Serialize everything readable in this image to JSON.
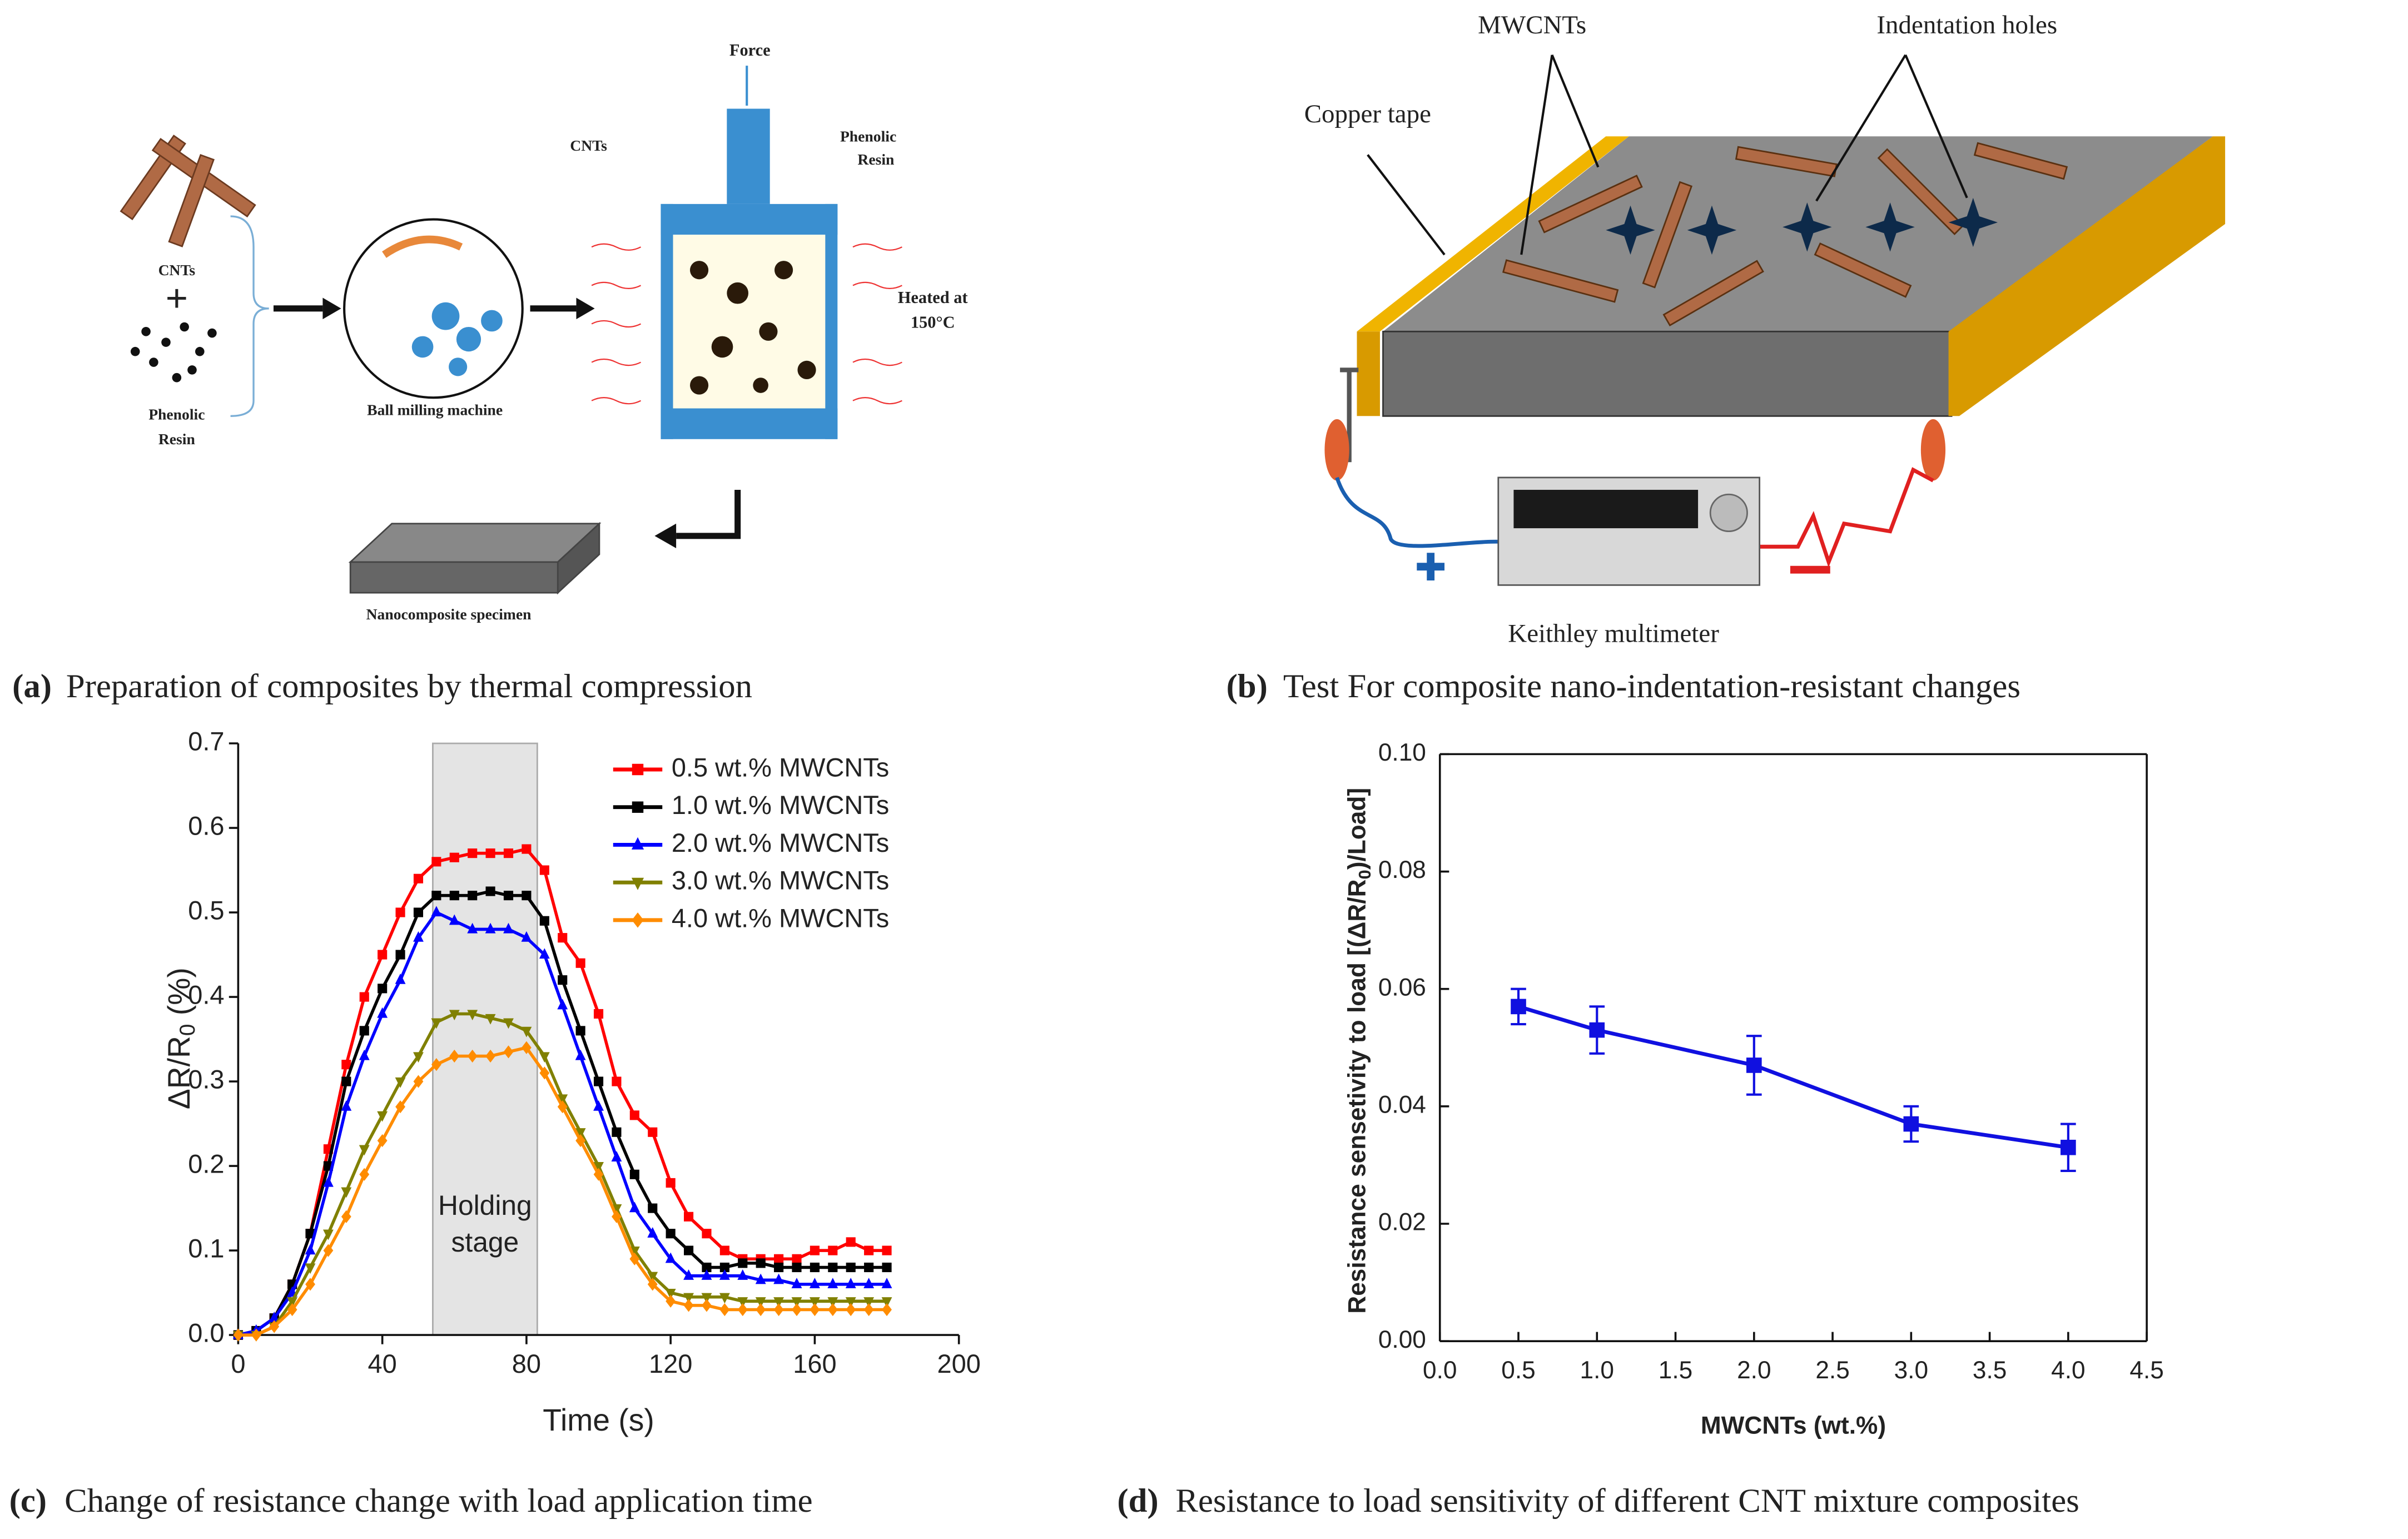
{
  "diagram_a": {
    "force": "Force",
    "cnts_top": "CNTs",
    "resin_top": [
      "Phenolic",
      "Resin"
    ],
    "heated": [
      "Heated at",
      "150°C"
    ],
    "cnts_left": "CNTs",
    "plus": "+",
    "resin_left": [
      "Phenolic",
      "Resin"
    ],
    "ball_mill": "Ball milling machine",
    "specimen": "Nanocomposite specimen"
  },
  "diagram_b": {
    "mwcnts": "MWCNTs",
    "holes": "Indentation holes",
    "copper": "Copper tape",
    "meter": "Keithley multimeter"
  },
  "captions": [
    {
      "label": "(a)",
      "text": "Preparation of composites by thermal compression"
    },
    {
      "label": "(b)",
      "text": "Test For composite nano-indentation-resistant changes"
    },
    {
      "label": "(c)",
      "text": "Change of resistance change with load application time"
    },
    {
      "label": "(d)",
      "text": "Resistance to load sensitivity of different CNT mixture composites"
    }
  ],
  "chart_data": [
    {
      "type": "line",
      "xlabel": "Time (s)",
      "ylabel": {
        "main": "ΔR/R",
        "sub": "0",
        "tail": " (%)"
      },
      "xlim": [
        0,
        200
      ],
      "xticks": [
        0,
        40,
        80,
        120,
        160,
        200
      ],
      "ylim": [
        0,
        0.7
      ],
      "yticks": [
        {
          "value": 0,
          "label": "0.0"
        },
        0.1,
        0.2,
        0.3,
        0.4,
        0.5,
        0.6,
        0.7
      ],
      "box": false,
      "legend": "upper right",
      "shaded_region": [
        54,
        83
      ],
      "annotation": [
        "Holding",
        "stage"
      ],
      "x": [
        0,
        5,
        10,
        15,
        20,
        25,
        30,
        35,
        40,
        45,
        50,
        55,
        60,
        65,
        70,
        75,
        80,
        85,
        90,
        95,
        100,
        105,
        110,
        115,
        120,
        125,
        130,
        135,
        140,
        145,
        150,
        155,
        160,
        165,
        170,
        175,
        180
      ],
      "series": [
        {
          "name": "0.5 wt.% MWCNTs",
          "color": "#ff0000",
          "marker": "square",
          "values": [
            0,
            0.005,
            0.02,
            0.06,
            0.12,
            0.22,
            0.32,
            0.4,
            0.45,
            0.5,
            0.54,
            0.56,
            0.565,
            0.57,
            0.57,
            0.57,
            0.575,
            0.55,
            0.47,
            0.44,
            0.38,
            0.3,
            0.26,
            0.24,
            0.18,
            0.14,
            0.12,
            0.1,
            0.09,
            0.09,
            0.09,
            0.09,
            0.1,
            0.1,
            0.11,
            0.1,
            0.1
          ]
        },
        {
          "name": "1.0 wt.% MWCNTs",
          "color": "#000000",
          "marker": "square",
          "values": [
            0,
            0.005,
            0.02,
            0.06,
            0.12,
            0.2,
            0.3,
            0.36,
            0.41,
            0.45,
            0.5,
            0.52,
            0.52,
            0.52,
            0.525,
            0.52,
            0.52,
            0.49,
            0.42,
            0.36,
            0.3,
            0.24,
            0.19,
            0.15,
            0.12,
            0.1,
            0.08,
            0.08,
            0.085,
            0.085,
            0.08,
            0.08,
            0.08,
            0.08,
            0.08,
            0.08,
            0.08
          ]
        },
        {
          "name": "2.0 wt.% MWCNTs",
          "color": "#0000ff",
          "marker": "triangle-up",
          "values": [
            0,
            0.005,
            0.02,
            0.05,
            0.1,
            0.18,
            0.27,
            0.33,
            0.38,
            0.42,
            0.47,
            0.5,
            0.49,
            0.48,
            0.48,
            0.48,
            0.47,
            0.45,
            0.39,
            0.33,
            0.27,
            0.21,
            0.15,
            0.12,
            0.09,
            0.07,
            0.07,
            0.07,
            0.07,
            0.065,
            0.065,
            0.06,
            0.06,
            0.06,
            0.06,
            0.06,
            0.06
          ]
        },
        {
          "name": "3.0 wt.% MWCNTs",
          "color": "#808000",
          "marker": "triangle-down",
          "values": [
            0,
            0,
            0.01,
            0.04,
            0.08,
            0.12,
            0.17,
            0.22,
            0.26,
            0.3,
            0.33,
            0.37,
            0.38,
            0.38,
            0.375,
            0.37,
            0.36,
            0.33,
            0.28,
            0.24,
            0.2,
            0.15,
            0.1,
            0.07,
            0.05,
            0.045,
            0.045,
            0.045,
            0.04,
            0.04,
            0.04,
            0.04,
            0.04,
            0.04,
            0.04,
            0.04,
            0.04
          ]
        },
        {
          "name": "4.0 wt.% MWCNTs",
          "color": "#ff8c00",
          "marker": "diamond",
          "values": [
            0,
            0,
            0.01,
            0.03,
            0.06,
            0.1,
            0.14,
            0.19,
            0.23,
            0.27,
            0.3,
            0.32,
            0.33,
            0.33,
            0.33,
            0.335,
            0.34,
            0.31,
            0.27,
            0.23,
            0.19,
            0.14,
            0.09,
            0.06,
            0.04,
            0.035,
            0.035,
            0.03,
            0.03,
            0.03,
            0.03,
            0.03,
            0.03,
            0.03,
            0.03,
            0.03,
            0.03
          ]
        }
      ]
    },
    {
      "type": "line",
      "xlabel": "MWCNTs (wt.%)",
      "ylabel": {
        "main": "Resistance sensetivity to load [(ΔR/R",
        "sub": "0",
        "tail": ")/Load]"
      },
      "xlim": [
        0,
        4.5
      ],
      "xticks": [
        {
          "value": 0,
          "label": "0.0"
        },
        0.5,
        {
          "value": 1,
          "label": "1.0"
        },
        1.5,
        {
          "value": 2,
          "label": "2.0"
        },
        2.5,
        {
          "value": 3,
          "label": "3.0"
        },
        3.5,
        {
          "value": 4,
          "label": "4.0"
        },
        4.5
      ],
      "ylim": [
        0,
        0.1
      ],
      "yticks": [
        {
          "value": 0,
          "label": "0.00"
        },
        {
          "value": 0.02,
          "label": "0.02"
        },
        {
          "value": 0.04,
          "label": "0.04"
        },
        {
          "value": 0.06,
          "label": "0.06"
        },
        {
          "value": 0.08,
          "label": "0.08"
        },
        {
          "value": 0.1,
          "label": "0.10"
        }
      ],
      "box": true,
      "color": "#1010e0",
      "marker": "square",
      "x": [
        0.5,
        1,
        2,
        3,
        4
      ],
      "values": [
        0.057,
        0.053,
        0.047,
        0.037,
        0.033
      ],
      "errors": [
        0.003,
        0.004,
        0.005,
        0.003,
        0.004
      ]
    }
  ]
}
